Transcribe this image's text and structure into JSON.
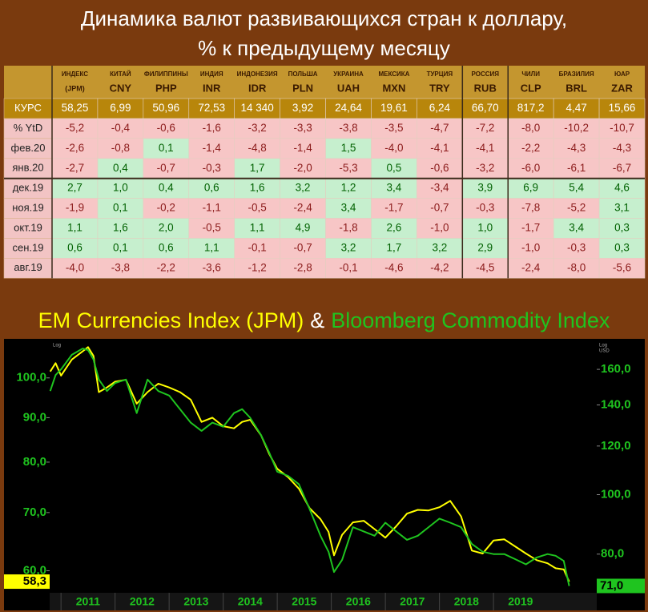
{
  "title": [
    "Динамика валют развивающихся стран к доллару,",
    "% к предыдущему месяцу"
  ],
  "table": {
    "columns": [
      {
        "country": "ИНДЕКС",
        "code": "(JPM)"
      },
      {
        "country": "КИТАЙ",
        "code": "CNY"
      },
      {
        "country": "ФИЛИППИНЫ",
        "code": "PHP"
      },
      {
        "country": "ИНДИЯ",
        "code": "INR"
      },
      {
        "country": "ИНДОНЕЗИЯ",
        "code": "IDR"
      },
      {
        "country": "ПОЛЬША",
        "code": "PLN"
      },
      {
        "country": "УКРАИНА",
        "code": "UAH"
      },
      {
        "country": "МЕКСИКА",
        "code": "MXN"
      },
      {
        "country": "ТУРЦИЯ",
        "code": "TRY"
      },
      {
        "country": "РОССИЯ",
        "code": "RUB"
      },
      {
        "country": "ЧИЛИ",
        "code": "CLP"
      },
      {
        "country": "БРАЗИЛИЯ",
        "code": "BRL"
      },
      {
        "country": "ЮАР",
        "code": "ZAR"
      }
    ],
    "rows": [
      {
        "label": "КУРС",
        "cells": [
          "58,25",
          "6,99",
          "50,96",
          "72,53",
          "14 340",
          "3,92",
          "24,64",
          "19,61",
          "6,24",
          "66,70",
          "817,2",
          "4,47",
          "15,66"
        ]
      },
      {
        "label": "% YtD",
        "cells": [
          "-5,2",
          "-0,4",
          "-0,6",
          "-1,6",
          "-3,2",
          "-3,3",
          "-3,8",
          "-3,5",
          "-4,7",
          "-7,2",
          "-8,0",
          "-10,2",
          "-10,7"
        ]
      },
      {
        "label": "фев.20",
        "cells": [
          "-2,6",
          "-0,8",
          "0,1",
          "-1,4",
          "-4,8",
          "-1,4",
          "1,5",
          "-4,0",
          "-4,1",
          "-4,1",
          "-2,2",
          "-4,3",
          "-4,3"
        ]
      },
      {
        "label": "янв.20",
        "cells": [
          "-2,7",
          "0,4",
          "-0,7",
          "-0,3",
          "1,7",
          "-2,0",
          "-5,3",
          "0,5",
          "-0,6",
          "-3,2",
          "-6,0",
          "-6,1",
          "-6,7"
        ]
      },
      {
        "label": "дек.19",
        "cells": [
          "2,7",
          "1,0",
          "0,4",
          "0,6",
          "1,6",
          "3,2",
          "1,2",
          "3,4",
          "-3,4",
          "3,9",
          "6,9",
          "5,4",
          "4,6"
        ]
      },
      {
        "label": "ноя.19",
        "cells": [
          "-1,9",
          "0,1",
          "-0,2",
          "-1,1",
          "-0,5",
          "-2,4",
          "3,4",
          "-1,7",
          "-0,7",
          "-0,3",
          "-7,8",
          "-5,2",
          "3,1"
        ]
      },
      {
        "label": "окт.19",
        "cells": [
          "1,1",
          "1,6",
          "2,0",
          "-0,5",
          "1,1",
          "4,9",
          "-1,8",
          "2,6",
          "-1,0",
          "1,0",
          "-1,7",
          "3,4",
          "0,3"
        ]
      },
      {
        "label": "сен.19",
        "cells": [
          "0,6",
          "0,1",
          "0,6",
          "1,1",
          "-0,1",
          "-0,7",
          "3,2",
          "1,7",
          "3,2",
          "2,9",
          "-1,0",
          "-0,3",
          "0,3"
        ]
      },
      {
        "label": "авг.19",
        "cells": [
          "-4,0",
          "-3,8",
          "-2,2",
          "-3,6",
          "-1,2",
          "-2,8",
          "-0,1",
          "-4,6",
          "-4,2",
          "-4,5",
          "-2,4",
          "-8,0",
          "-5,6"
        ]
      }
    ]
  },
  "chart_data": {
    "type": "line",
    "title_separator": "&",
    "y_label": "Log",
    "y2_label": [
      "Log",
      "USD"
    ],
    "log_scale": true,
    "x": [
      2010.8,
      2010.9,
      2011.0,
      2011.2,
      2011.4,
      2011.5,
      2011.6,
      2011.7,
      2011.85,
      2012.0,
      2012.2,
      2012.4,
      2012.6,
      2012.8,
      2013.0,
      2013.2,
      2013.4,
      2013.6,
      2013.8,
      2014.0,
      2014.2,
      2014.35,
      2014.5,
      2014.7,
      2014.85,
      2015.0,
      2015.2,
      2015.4,
      2015.6,
      2015.8,
      2015.95,
      2016.05,
      2016.2,
      2016.4,
      2016.6,
      2016.8,
      2017.0,
      2017.2,
      2017.4,
      2017.6,
      2017.8,
      2018.0,
      2018.2,
      2018.4,
      2018.6,
      2018.8,
      2019.0,
      2019.2,
      2019.4,
      2019.6,
      2019.8,
      2020.0,
      2020.15,
      2020.3,
      2020.4
    ],
    "xlim": [
      2010.79,
      2020.91
    ],
    "xticks": [
      2011,
      2012,
      2013,
      2014,
      2015,
      2016,
      2017,
      2018,
      2019
    ],
    "ylim": [
      56.6,
      110.9
    ],
    "yticks": [
      {
        "value": 60,
        "label": "60,0"
      },
      {
        "value": 70,
        "label": "70,0"
      },
      {
        "value": 80,
        "label": "80,0"
      },
      {
        "value": 90,
        "label": "90,0"
      },
      {
        "value": 100,
        "label": "100,0"
      }
    ],
    "y2lim": [
      69.2,
      179.4
    ],
    "y2ticks": [
      {
        "value": 80,
        "label": "80,0"
      },
      {
        "value": 100,
        "label": "100,0"
      },
      {
        "value": 120,
        "label": "120,0"
      },
      {
        "value": 140,
        "label": "140,0"
      },
      {
        "value": 160,
        "label": "160,0"
      }
    ],
    "series": [
      {
        "name": "EM Currencies Index (JPM)",
        "color": "#ffff00",
        "end_label": "58,3",
        "values": [
          101.7,
          104,
          100.6,
          105,
          107.3,
          108.5,
          106,
          96.3,
          97.5,
          99,
          99.5,
          93.4,
          96.3,
          98.5,
          97.5,
          96.3,
          94.4,
          89,
          90,
          88,
          87.5,
          89,
          89.5,
          85.9,
          81.8,
          78.6,
          76.9,
          74.6,
          70.8,
          68.8,
          66.5,
          62.5,
          66,
          68.2,
          68.5,
          67,
          65.5,
          67.5,
          69.8,
          70.5,
          70.4,
          71,
          72.2,
          69.3,
          63.3,
          62.8,
          65,
          65.2,
          64,
          62.8,
          61.7,
          61.2,
          60.4,
          60.2,
          58.3
        ]
      },
      {
        "name": "Bloomberg Commodity Index",
        "color": "#1fc41f",
        "axis": "y2",
        "end_label": "71,0",
        "values": [
          147.5,
          156.6,
          160,
          169,
          173,
          172,
          166,
          154,
          147.5,
          152,
          154,
          135.8,
          154,
          147.5,
          145,
          137.8,
          131,
          127,
          131,
          129,
          135.8,
          137.8,
          133.4,
          125,
          117.2,
          109,
          107.3,
          104,
          94.7,
          85.7,
          80.7,
          74.8,
          78.3,
          88.5,
          87.1,
          85.7,
          90,
          87.1,
          84.4,
          85.7,
          88.5,
          91.4,
          90,
          88.5,
          83.1,
          80.7,
          80,
          80,
          78.5,
          77,
          79,
          80,
          79.5,
          78,
          71.0
        ]
      }
    ]
  }
}
